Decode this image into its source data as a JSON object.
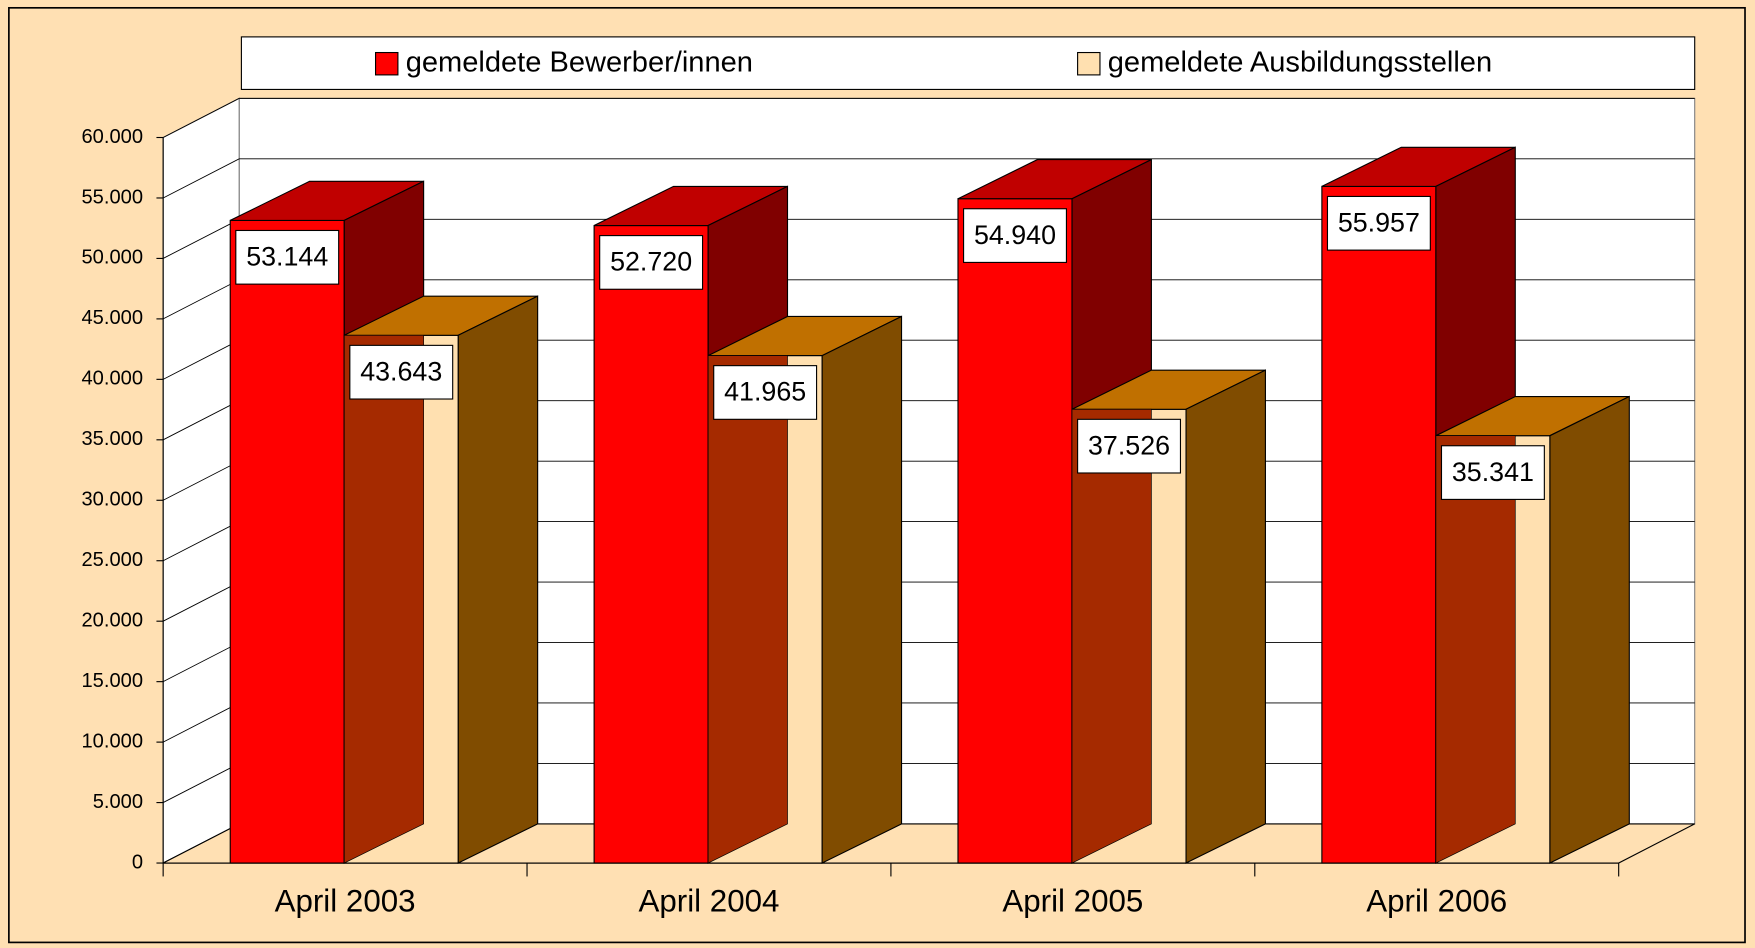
{
  "chart_data": {
    "type": "bar3d",
    "categories": [
      "April 2003",
      "April 2004",
      "April 2005",
      "April 2006"
    ],
    "series": [
      {
        "name": "gemeldete Bewerber/innen",
        "color": "#FF0000",
        "top_color": "#C00000",
        "side_color": "#800000",
        "values": [
          53144,
          52720,
          54940,
          55957
        ],
        "value_labels": [
          "53.144",
          "52.720",
          "54.940",
          "55.957"
        ]
      },
      {
        "name": "gemeldete Ausbildungsstellen",
        "color": "#FFE0B0",
        "top_color": "#C07000",
        "side_color": "#804C00",
        "values": [
          43643,
          41965,
          37526,
          35341
        ],
        "value_labels": [
          "43.643",
          "41.965",
          "37.526",
          "35.341"
        ]
      }
    ],
    "ylim": [
      0,
      60000
    ],
    "yticks": [
      0,
      {
        "value": 5000,
        "label": "5.000"
      },
      {
        "value": 10000,
        "label": "10.000"
      },
      {
        "value": 15000,
        "label": "15.000"
      },
      {
        "value": 20000,
        "label": "20.000"
      },
      {
        "value": 25000,
        "label": "25.000"
      },
      {
        "value": 30000,
        "label": "30.000"
      },
      {
        "value": 35000,
        "label": "35.000"
      },
      {
        "value": 40000,
        "label": "40.000"
      },
      {
        "value": 45000,
        "label": "45.000"
      },
      {
        "value": 50000,
        "label": "50.000"
      },
      {
        "value": 55000,
        "label": "55.000"
      },
      {
        "value": 60000,
        "label": "60.000"
      }
    ],
    "grid": true,
    "legend": "top"
  }
}
